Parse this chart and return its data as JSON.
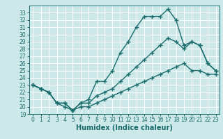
{
  "title": "",
  "xlabel": "Humidex (Indice chaleur)",
  "ylabel": "",
  "background_color": "#cce8e8",
  "grid_color": "#ffffff",
  "line_color": "#1a6b6b",
  "series1_x": [
    0,
    1,
    2,
    3,
    4,
    5,
    6,
    7,
    8,
    9,
    10,
    11,
    12,
    13,
    14,
    15,
    16,
    17,
    18,
    19,
    20,
    21,
    22,
    23
  ],
  "series1_y": [
    23.0,
    22.5,
    22.0,
    20.5,
    20.5,
    19.5,
    20.5,
    21.0,
    23.5,
    23.5,
    25.0,
    27.5,
    29.0,
    31.0,
    32.5,
    32.5,
    32.5,
    33.5,
    32.0,
    28.5,
    29.0,
    28.5,
    26.0,
    25.0
  ],
  "series2_x": [
    0,
    1,
    2,
    3,
    4,
    5,
    6,
    7,
    8,
    9,
    10,
    11,
    12,
    13,
    14,
    15,
    16,
    17,
    18,
    19,
    20,
    21,
    22,
    23
  ],
  "series2_y": [
    23.0,
    22.5,
    22.0,
    20.5,
    20.5,
    19.5,
    20.5,
    20.5,
    21.5,
    22.0,
    22.5,
    23.5,
    24.5,
    25.5,
    26.5,
    27.5,
    28.5,
    29.5,
    29.0,
    28.0,
    29.0,
    28.5,
    26.0,
    25.0
  ],
  "series3_x": [
    0,
    1,
    2,
    3,
    4,
    5,
    6,
    7,
    8,
    9,
    10,
    11,
    12,
    13,
    14,
    15,
    16,
    17,
    18,
    19,
    20,
    21,
    22,
    23
  ],
  "series3_y": [
    23.0,
    22.5,
    22.0,
    20.5,
    20.0,
    19.5,
    20.0,
    20.0,
    20.5,
    21.0,
    21.5,
    22.0,
    22.5,
    23.0,
    23.5,
    24.0,
    24.5,
    25.0,
    25.5,
    26.0,
    25.0,
    25.0,
    24.5,
    24.5
  ],
  "xlim": [
    -0.5,
    23.5
  ],
  "ylim": [
    19.0,
    34.0
  ],
  "yticks": [
    19,
    20,
    21,
    22,
    23,
    24,
    25,
    26,
    27,
    28,
    29,
    30,
    31,
    32,
    33
  ],
  "xticks": [
    0,
    1,
    2,
    3,
    4,
    5,
    6,
    7,
    8,
    9,
    10,
    11,
    12,
    13,
    14,
    15,
    16,
    17,
    18,
    19,
    20,
    21,
    22,
    23
  ],
  "marker": "+",
  "marker_size": 4,
  "line_width": 1.0,
  "xlabel_fontsize": 7,
  "tick_fontsize": 5.5
}
